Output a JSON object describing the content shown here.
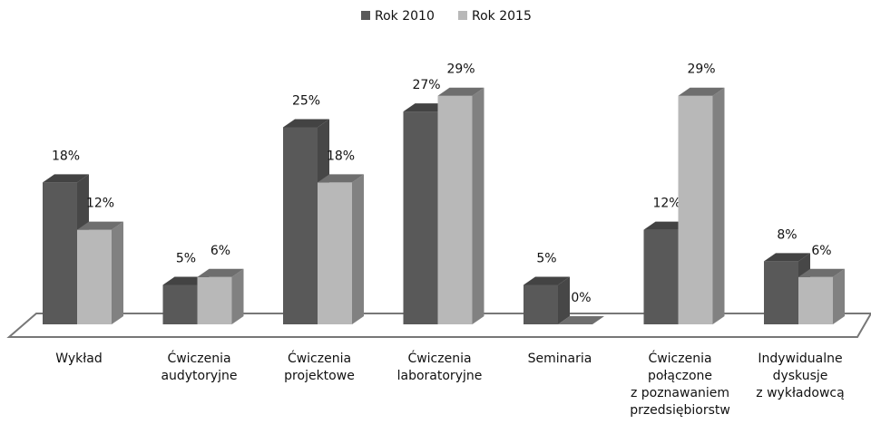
{
  "chart_data": {
    "type": "bar3d",
    "categories": [
      [
        "Wykład"
      ],
      [
        "Ćwiczenia",
        "audytoryjne"
      ],
      [
        "Ćwiczenia",
        "projektowe"
      ],
      [
        "Ćwiczenia",
        "laboratoryjne"
      ],
      [
        "Seminaria"
      ],
      [
        "Ćwiczenia",
        "połączone",
        "z poznawaniem",
        "przedsiębiorstw"
      ],
      [
        "Indywidualne",
        "dyskusje",
        "z wykładowcą"
      ]
    ],
    "series": [
      {
        "name": "Rok 2010",
        "color": "#595959",
        "values": [
          18,
          5,
          25,
          27,
          5,
          12,
          8
        ],
        "value_labels": [
          "18%",
          "5%",
          "25%",
          "27%",
          "5%",
          "12%",
          "8%"
        ]
      },
      {
        "name": "Rok 2015",
        "color": "#b8b8b8",
        "values": [
          12,
          6,
          18,
          29,
          0,
          29,
          6
        ],
        "value_labels": [
          "12%",
          "6%",
          "18%",
          "29%",
          "0%",
          "29%",
          "6%"
        ]
      }
    ],
    "legend": "top"
  }
}
